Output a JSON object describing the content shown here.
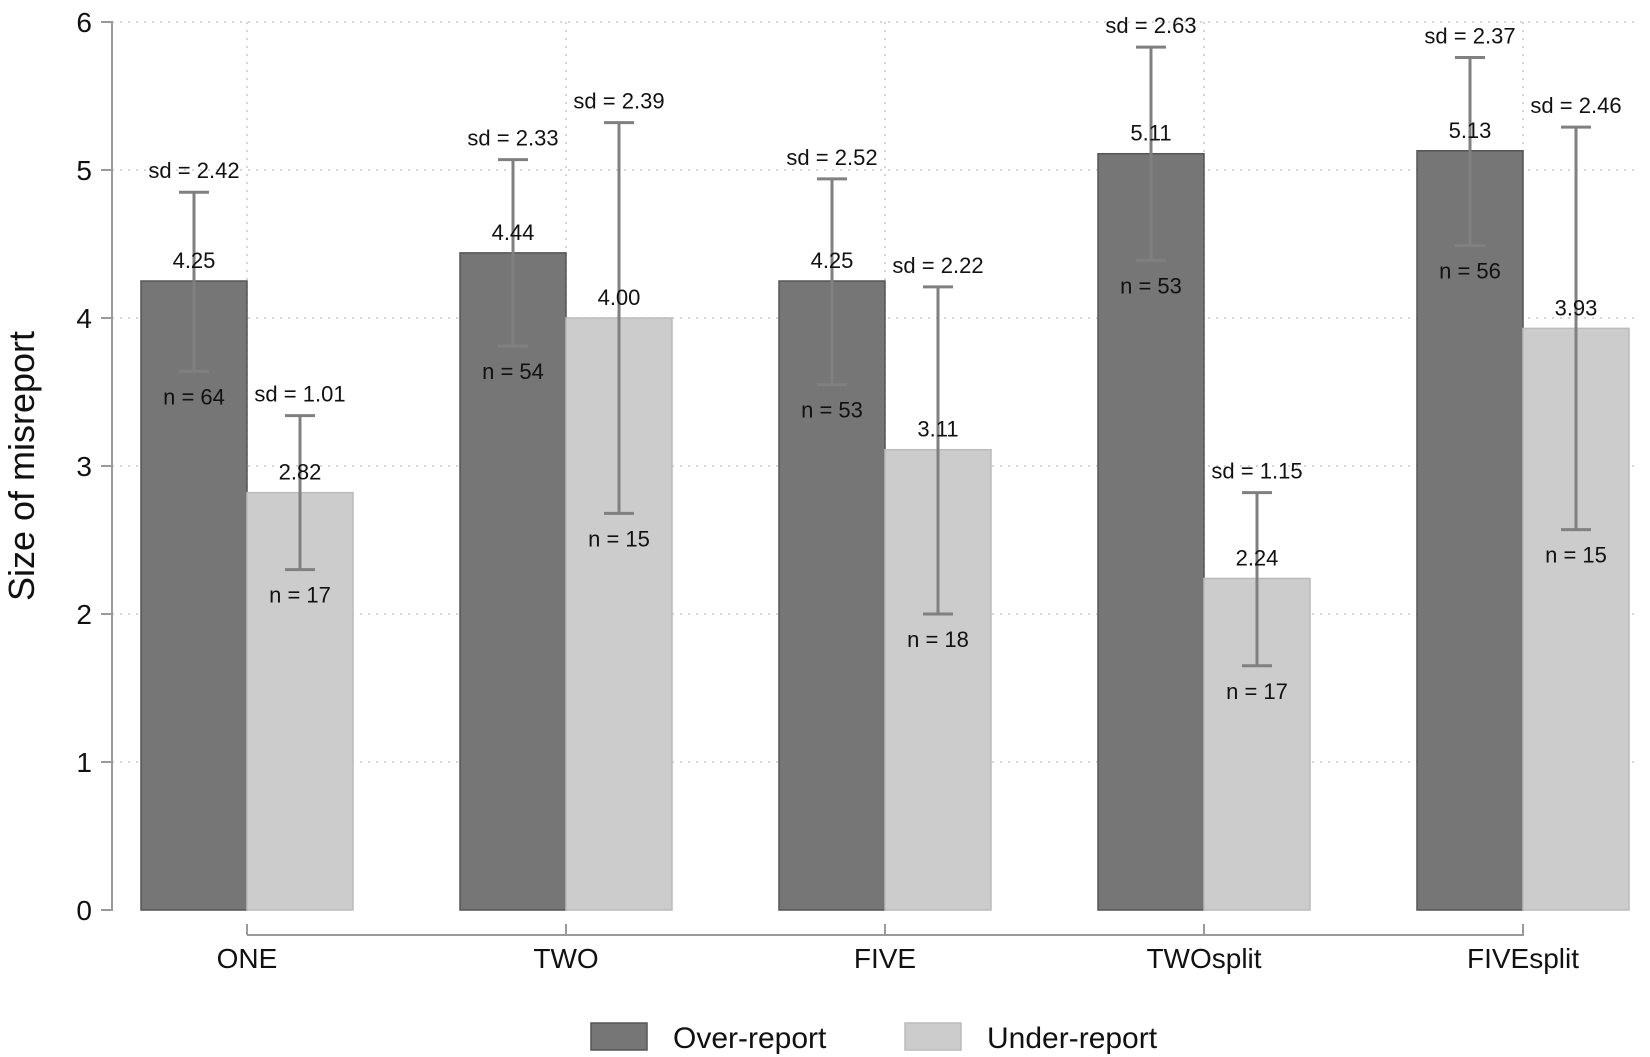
{
  "chart_data": {
    "type": "bar",
    "title": "",
    "xlabel": "",
    "ylabel": "Size of misreport",
    "ylim": [
      0,
      6
    ],
    "yticks": [
      0,
      1,
      2,
      3,
      4,
      5,
      6
    ],
    "grid": true,
    "legend_position": "bottom",
    "categories": [
      "ONE",
      "TWO",
      "FIVE",
      "TWOsplit",
      "FIVEsplit"
    ],
    "series": [
      {
        "name": "Over-report",
        "color": "#767676",
        "values": [
          4.25,
          4.44,
          4.25,
          5.11,
          5.13
        ],
        "value_labels": [
          "4.25",
          "4.44",
          "4.25",
          "5.11",
          "5.13"
        ],
        "n_labels": [
          "n = 64",
          "n = 54",
          "n = 53",
          "n = 53",
          "n = 56"
        ],
        "sd_labels": [
          "sd = 2.42",
          "sd = 2.33",
          "sd = 2.52",
          "sd = 2.63",
          "sd = 2.37"
        ],
        "ci_low": [
          3.64,
          3.81,
          3.55,
          4.39,
          4.49
        ],
        "ci_high": [
          4.85,
          5.07,
          4.94,
          5.83,
          5.76
        ]
      },
      {
        "name": "Under-report",
        "color": "#cccccc",
        "values": [
          2.82,
          4.0,
          3.11,
          2.24,
          3.93
        ],
        "value_labels": [
          "2.82",
          "4.00",
          "3.11",
          "2.24",
          "3.93"
        ],
        "n_labels": [
          "n = 17",
          "n = 15",
          "n = 18",
          "n = 17",
          "n = 15"
        ],
        "sd_labels": [
          "sd = 1.01",
          "sd = 2.39",
          "sd = 2.22",
          "sd = 1.15",
          "sd = 2.46"
        ],
        "ci_low": [
          2.3,
          2.68,
          2.0,
          1.65,
          2.57
        ],
        "ci_high": [
          3.34,
          5.32,
          4.21,
          2.82,
          5.29
        ]
      }
    ]
  }
}
